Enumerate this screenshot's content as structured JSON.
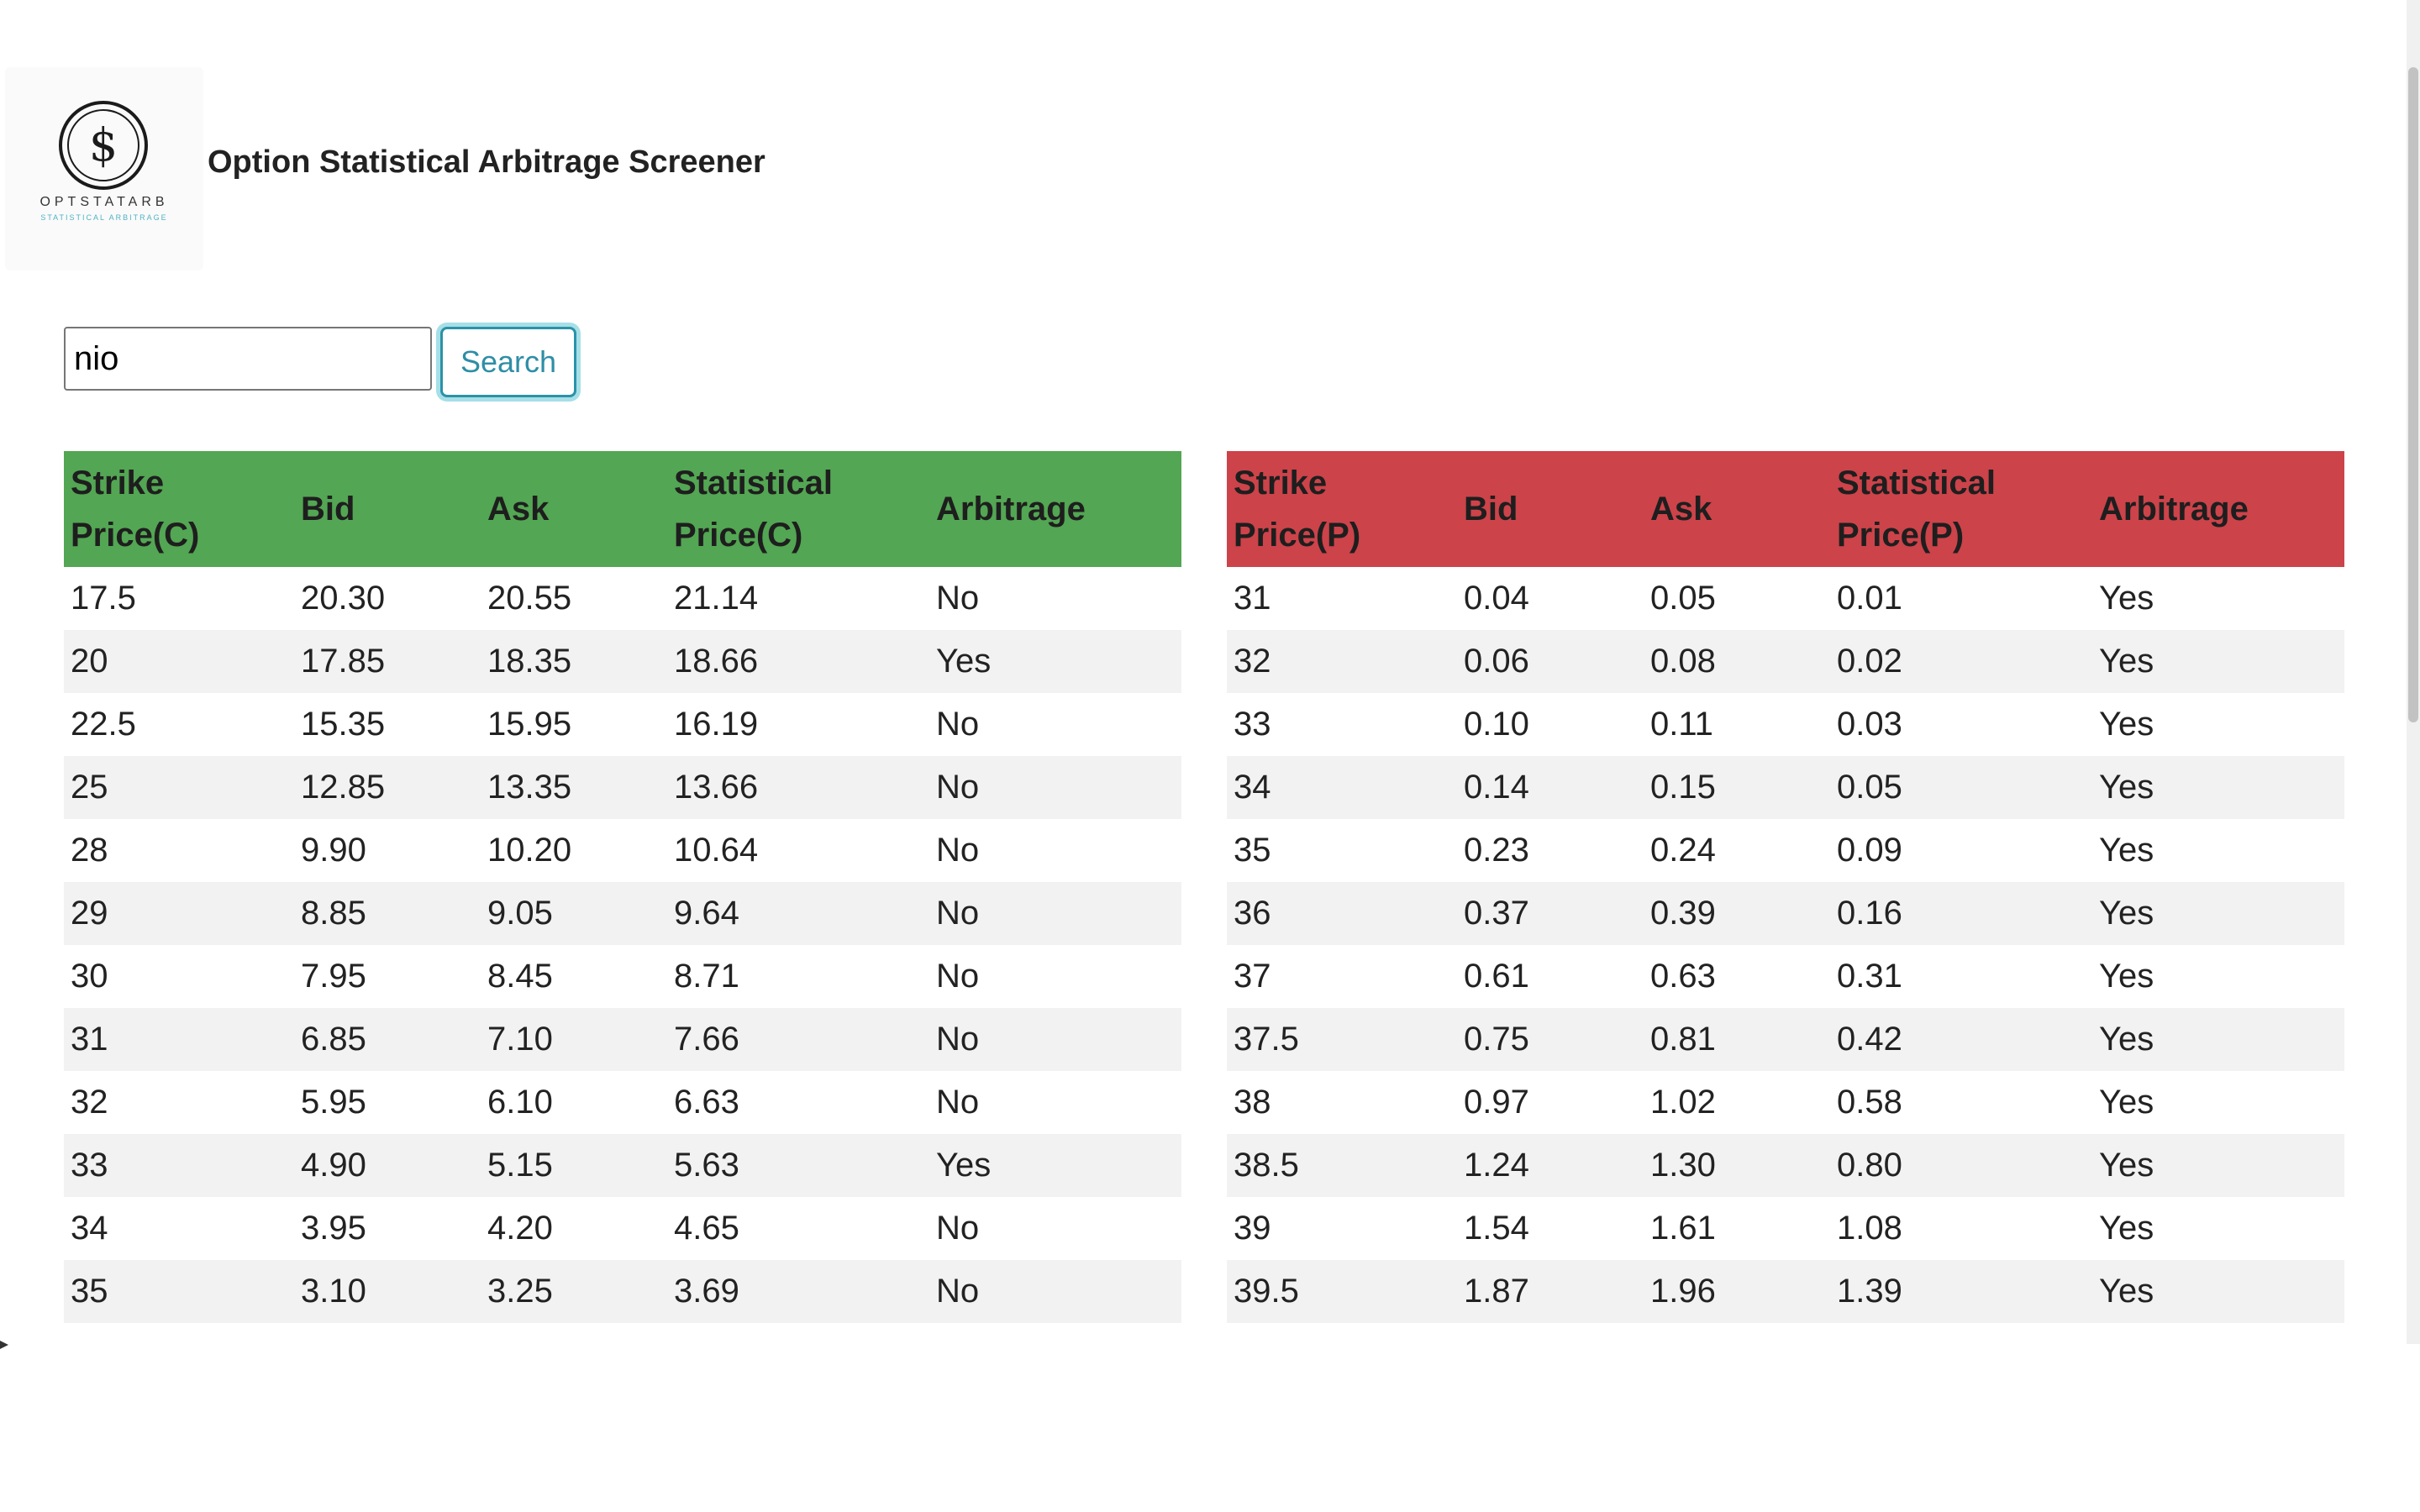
{
  "header": {
    "title": "Option Statistical Arbitrage Screener",
    "logo": {
      "glyph": "$",
      "name": "OPTSTATARB",
      "tagline": "STATISTICAL ARBITRAGE",
      "icon": "dollar-circle-icon"
    }
  },
  "search": {
    "value": "nio",
    "button_label": "Search"
  },
  "calls_table": {
    "header_color": "#53a653",
    "headers": {
      "strike_line1": "Strike",
      "strike_line2": "Price(C)",
      "bid": "Bid",
      "ask": "Ask",
      "stat_line1": "Statistical",
      "stat_line2": "Price(C)",
      "arbitrage": "Arbitrage"
    },
    "rows": [
      {
        "strike": "17.5",
        "bid": "20.30",
        "ask": "20.55",
        "stat": "21.14",
        "arb": "No"
      },
      {
        "strike": "20",
        "bid": "17.85",
        "ask": "18.35",
        "stat": "18.66",
        "arb": "Yes"
      },
      {
        "strike": "22.5",
        "bid": "15.35",
        "ask": "15.95",
        "stat": "16.19",
        "arb": "No"
      },
      {
        "strike": "25",
        "bid": "12.85",
        "ask": "13.35",
        "stat": "13.66",
        "arb": "No"
      },
      {
        "strike": "28",
        "bid": "9.90",
        "ask": "10.20",
        "stat": "10.64",
        "arb": "No"
      },
      {
        "strike": "29",
        "bid": "8.85",
        "ask": "9.05",
        "stat": "9.64",
        "arb": "No"
      },
      {
        "strike": "30",
        "bid": "7.95",
        "ask": "8.45",
        "stat": "8.71",
        "arb": "No"
      },
      {
        "strike": "31",
        "bid": "6.85",
        "ask": "7.10",
        "stat": "7.66",
        "arb": "No"
      },
      {
        "strike": "32",
        "bid": "5.95",
        "ask": "6.10",
        "stat": "6.63",
        "arb": "No"
      },
      {
        "strike": "33",
        "bid": "4.90",
        "ask": "5.15",
        "stat": "5.63",
        "arb": "Yes"
      },
      {
        "strike": "34",
        "bid": "3.95",
        "ask": "4.20",
        "stat": "4.65",
        "arb": "No"
      },
      {
        "strike": "35",
        "bid": "3.10",
        "ask": "3.25",
        "stat": "3.69",
        "arb": "No"
      }
    ]
  },
  "puts_table": {
    "header_color": "#cc434a",
    "headers": {
      "strike_line1": "Strike",
      "strike_line2": "Price(P)",
      "bid": "Bid",
      "ask": "Ask",
      "stat_line1": "Statistical",
      "stat_line2": "Price(P)",
      "arbitrage": "Arbitrage"
    },
    "rows": [
      {
        "strike": "31",
        "bid": "0.04",
        "ask": "0.05",
        "stat": "0.01",
        "arb": "Yes"
      },
      {
        "strike": "32",
        "bid": "0.06",
        "ask": "0.08",
        "stat": "0.02",
        "arb": "Yes"
      },
      {
        "strike": "33",
        "bid": "0.10",
        "ask": "0.11",
        "stat": "0.03",
        "arb": "Yes"
      },
      {
        "strike": "34",
        "bid": "0.14",
        "ask": "0.15",
        "stat": "0.05",
        "arb": "Yes"
      },
      {
        "strike": "35",
        "bid": "0.23",
        "ask": "0.24",
        "stat": "0.09",
        "arb": "Yes"
      },
      {
        "strike": "36",
        "bid": "0.37",
        "ask": "0.39",
        "stat": "0.16",
        "arb": "Yes"
      },
      {
        "strike": "37",
        "bid": "0.61",
        "ask": "0.63",
        "stat": "0.31",
        "arb": "Yes"
      },
      {
        "strike": "37.5",
        "bid": "0.75",
        "ask": "0.81",
        "stat": "0.42",
        "arb": "Yes"
      },
      {
        "strike": "38",
        "bid": "0.97",
        "ask": "1.02",
        "stat": "0.58",
        "arb": "Yes"
      },
      {
        "strike": "38.5",
        "bid": "1.24",
        "ask": "1.30",
        "stat": "0.80",
        "arb": "Yes"
      },
      {
        "strike": "39",
        "bid": "1.54",
        "ask": "1.61",
        "stat": "1.08",
        "arb": "Yes"
      },
      {
        "strike": "39.5",
        "bid": "1.87",
        "ask": "1.96",
        "stat": "1.39",
        "arb": "Yes"
      }
    ]
  }
}
